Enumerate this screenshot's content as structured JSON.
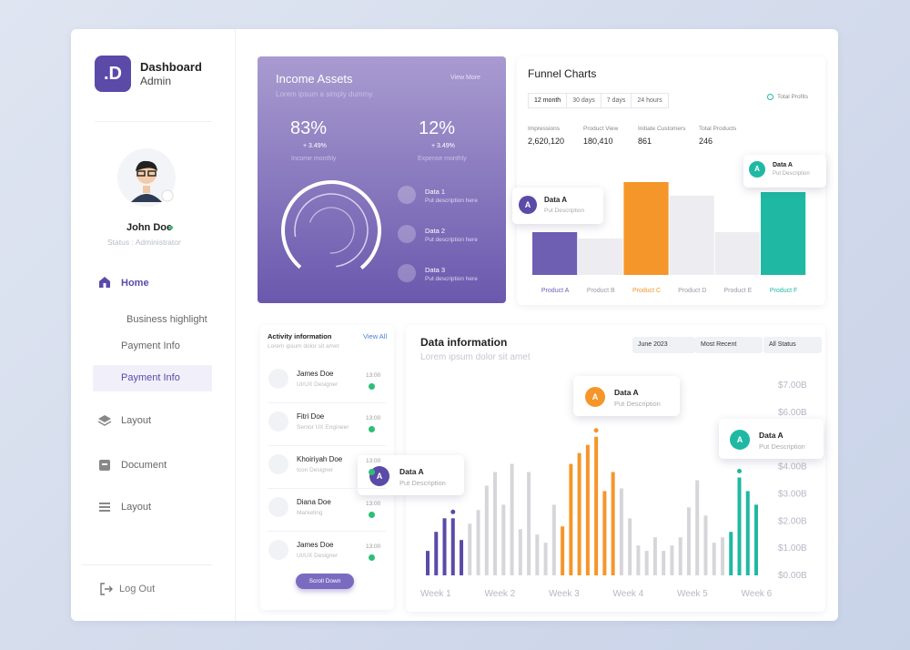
{
  "sidebar": {
    "brand_letter": ".D",
    "brand_title": "Dashboard",
    "brand_subtitle": "Admin",
    "user_name": "John Doe",
    "user_status": "Status : Administrator",
    "menu": [
      "Home",
      "Business highlight",
      "Payment Info",
      "Payment Info",
      "Layout",
      "Document",
      "Layout"
    ],
    "logout": "Log Out"
  },
  "income": {
    "title": "Income Assets",
    "link": "View More",
    "subtitle": "Lorem ipsum a simply dummy.",
    "stats": [
      {
        "value": "83%",
        "change": "+ 3.49%",
        "label": "Income monthly"
      },
      {
        "value": "12%",
        "change": "+ 3.49%",
        "label": "Expense monthly"
      }
    ],
    "items": [
      {
        "title": "Data 1",
        "desc": "Put description here"
      },
      {
        "title": "Data 2",
        "desc": "Put description here"
      },
      {
        "title": "Data 3",
        "desc": "Put description here"
      }
    ]
  },
  "funnel": {
    "title": "Funnel Charts",
    "tabs": [
      "12 month",
      "30 days",
      "7 days",
      "24 hours"
    ],
    "legend": "Total Profits",
    "metrics": [
      {
        "label": "Impressions",
        "value": "2,620,120"
      },
      {
        "label": "Product View",
        "value": "180,410"
      },
      {
        "label": "Initiate Customers",
        "value": "861"
      },
      {
        "label": "Total Products",
        "value": "246"
      }
    ],
    "chart": {
      "type": "bar",
      "categories": [
        "Product A",
        "Product B",
        "Product C",
        "Product D",
        "Product E",
        "Product F"
      ],
      "values": [
        47,
        40,
        102,
        87,
        47,
        91
      ],
      "colors": [
        "#6f5fb3",
        "#ececf1",
        "#f5962a",
        "#ececf1",
        "#ececf1",
        "#1fb9a3"
      ],
      "label_colors": [
        "#6f5fb3",
        "#9a9aa6",
        "#f5962a",
        "#9a9aa6",
        "#9a9aa6",
        "#1fb9a3"
      ]
    },
    "tooltips": [
      {
        "badge": "A",
        "title": "Data A",
        "desc": "Put Description"
      },
      {
        "badge": "A",
        "title": "Data A",
        "desc": "Put Description"
      }
    ]
  },
  "activity": {
    "title": "Activity information",
    "view_all": "View All",
    "subtitle": "Lorem ipsum dolor sit amet",
    "people": [
      {
        "name": "James Doe",
        "role": "UI/UX Designer",
        "time": "13:00"
      },
      {
        "name": "Fitri Doe",
        "role": "Senior UX Engineer",
        "time": "13:00"
      },
      {
        "name": "Khoiriyah Doe",
        "role": "Icon Designer",
        "time": "13:00"
      },
      {
        "name": "Diana Doe",
        "role": "Marketing",
        "time": "13:00"
      },
      {
        "name": "James Doe",
        "role": "UI/UX Designer",
        "time": "13:00"
      }
    ],
    "button": "Scroll Down"
  },
  "data_info": {
    "title": "Data information",
    "subtitle": "Lorem ipsum dolor sit amet",
    "filters": [
      "June 2023",
      "Most Recent",
      "All Status"
    ],
    "chart": {
      "type": "bar",
      "x_labels": [
        "Week 1",
        "Week 2",
        "Week 3",
        "Week 4",
        "Week 5",
        "Week 6"
      ],
      "ylim": [
        0,
        7
      ],
      "yticks": [
        {
          "value": 0,
          "label": "$0.00B"
        },
        {
          "value": 1,
          "label": "$1.00B"
        },
        {
          "value": 2,
          "label": "$2.00B"
        },
        {
          "value": 3,
          "label": "$3.00B"
        },
        {
          "value": 4,
          "label": "$4.00B"
        },
        {
          "value": 6,
          "label": "$6.00B"
        },
        {
          "value": 7,
          "label": "$7.00B"
        }
      ],
      "values": [
        0.9,
        1.6,
        2.1,
        2.1,
        1.3,
        1.9,
        2.4,
        3.3,
        3.8,
        2.6,
        4.1,
        1.7,
        3.8,
        1.5,
        1.2,
        2.6,
        1.8,
        4.1,
        4.5,
        4.8,
        5.1,
        3.1,
        3.8,
        3.2,
        2.1,
        1.1,
        0.9,
        1.4,
        0.9,
        1.1,
        1.4,
        2.5,
        3.5,
        2.2,
        1.2,
        1.4,
        1.6,
        3.6,
        3.1,
        2.6
      ],
      "colors": [
        "#5b4aa8",
        "#5b4aa8",
        "#5b4aa8",
        "#5b4aa8",
        "#5b4aa8",
        "#d6d6da",
        "#d6d6da",
        "#d6d6da",
        "#d6d6da",
        "#d6d6da",
        "#d6d6da",
        "#d6d6da",
        "#d6d6da",
        "#d6d6da",
        "#d6d6da",
        "#d6d6da",
        "#f5962a",
        "#f5962a",
        "#f5962a",
        "#f5962a",
        "#f5962a",
        "#f5962a",
        "#f5962a",
        "#d6d6da",
        "#d6d6da",
        "#d6d6da",
        "#d6d6da",
        "#d6d6da",
        "#d6d6da",
        "#d6d6da",
        "#d6d6da",
        "#d6d6da",
        "#d6d6da",
        "#d6d6da",
        "#d6d6da",
        "#d6d6da",
        "#1fb9a3",
        "#1fb9a3",
        "#1fb9a3",
        "#1fb9a3"
      ]
    },
    "tooltips": [
      {
        "badge": "A",
        "title": "Data A",
        "desc": "Put Description"
      },
      {
        "badge": "A",
        "title": "Data A",
        "desc": "Put Description"
      },
      {
        "badge": "A",
        "title": "Data A",
        "desc": "Put Description"
      }
    ]
  }
}
